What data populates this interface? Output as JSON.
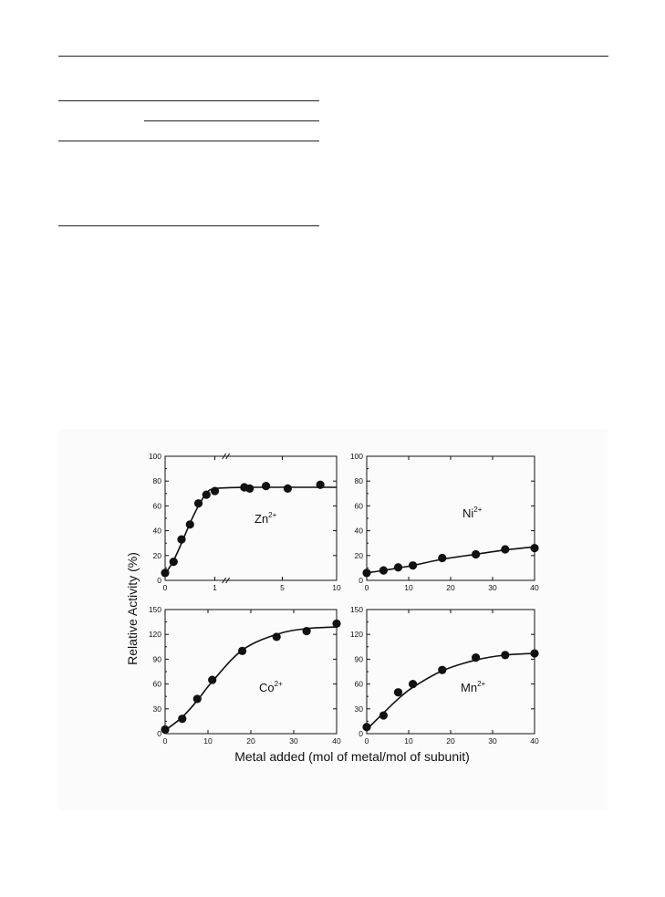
{
  "chart_data": [
    {
      "type": "scatter",
      "panel": "top-left",
      "annotation": {
        "base": "Zn",
        "sup": "2+"
      },
      "x_axis_broken": true,
      "x_ticks": [
        "0",
        "1",
        "5",
        "10"
      ],
      "xlim": [
        0,
        10
      ],
      "ylim": [
        0,
        100
      ],
      "y_ticks": [
        "0",
        "20",
        "40",
        "60",
        "80",
        "100"
      ],
      "series": [
        {
          "x": [
            0,
            0.17,
            0.33,
            0.5,
            0.67,
            0.83,
            1.0,
            1.5,
            2.0,
            3.5,
            5.5,
            8.5
          ],
          "y": [
            6,
            15,
            33,
            45,
            62,
            69,
            72,
            75,
            74,
            76,
            74,
            77
          ],
          "fit_y": [
            5,
            16,
            30,
            46,
            60,
            70,
            74,
            75,
            75,
            75,
            75,
            75
          ]
        }
      ]
    },
    {
      "type": "scatter",
      "panel": "top-right",
      "annotation": {
        "base": "Ni",
        "sup": "2+"
      },
      "xlim": [
        0,
        40
      ],
      "x_ticks": [
        "0",
        "10",
        "20",
        "30",
        "40"
      ],
      "ylim": [
        0,
        100
      ],
      "y_ticks": [
        "0",
        "20",
        "40",
        "60",
        "80",
        "100"
      ],
      "series": [
        {
          "x": [
            0,
            4,
            7.5,
            11,
            18,
            26,
            33,
            40
          ],
          "y": [
            6,
            8,
            10.5,
            12,
            18,
            21,
            25,
            26
          ],
          "fit_y": [
            6,
            8,
            10,
            12,
            17,
            21,
            24.5,
            27
          ]
        }
      ]
    },
    {
      "type": "scatter",
      "panel": "bottom-left",
      "annotation": {
        "base": "Co",
        "sup": "2+"
      },
      "xlim": [
        0,
        40
      ],
      "x_ticks": [
        "0",
        "10",
        "20",
        "30",
        "40"
      ],
      "ylim": [
        0,
        150
      ],
      "y_ticks": [
        "0",
        "30",
        "60",
        "90",
        "120",
        "150"
      ],
      "series": [
        {
          "x": [
            0,
            4,
            7.5,
            11,
            18,
            26,
            33,
            40
          ],
          "y": [
            5,
            18,
            42,
            65,
            100,
            117,
            124,
            133
          ],
          "fit_y": [
            4,
            20,
            40,
            63,
            101,
            120,
            127,
            129
          ]
        }
      ]
    },
    {
      "type": "scatter",
      "panel": "bottom-right",
      "annotation": {
        "base": "Mn",
        "sup": "2+"
      },
      "xlim": [
        0,
        40
      ],
      "x_ticks": [
        "0",
        "10",
        "20",
        "30",
        "40"
      ],
      "ylim": [
        0,
        150
      ],
      "y_ticks": [
        "0",
        "30",
        "60",
        "90",
        "120",
        "150"
      ],
      "series": [
        {
          "x": [
            0,
            4,
            7.5,
            11,
            18,
            26,
            33,
            40
          ],
          "y": [
            8,
            22,
            50,
            60,
            77,
            92,
            95,
            97
          ],
          "fit_y": [
            5,
            25,
            42,
            56,
            76,
            89,
            95,
            97
          ]
        }
      ]
    }
  ],
  "axes": {
    "ylabel": "Relative Activity (%)",
    "xlabel": "Metal added (mol of metal/mol of subunit)"
  },
  "colors": {
    "marker": "#111111",
    "line": "#111111",
    "panel_background": "#fbfbfb"
  }
}
